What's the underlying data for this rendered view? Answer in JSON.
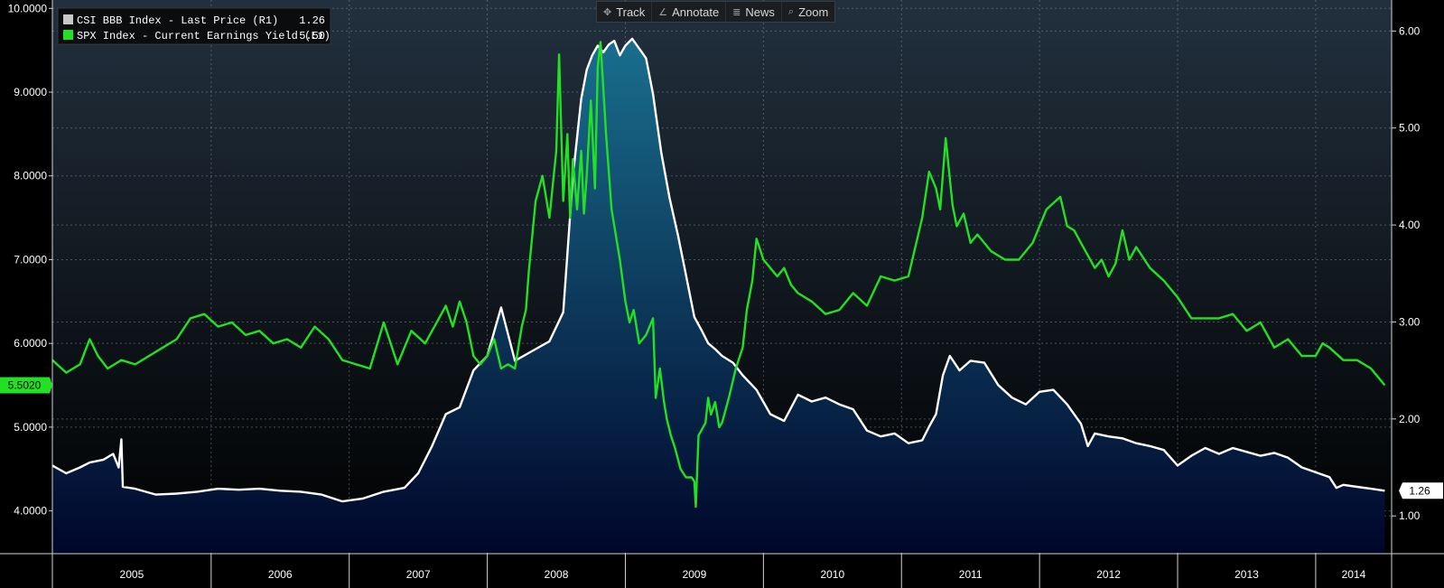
{
  "toolbar": {
    "track": {
      "label": "Track",
      "icon": "crosshair-icon"
    },
    "annotate": {
      "label": "Annotate",
      "icon": "pencil-icon"
    },
    "news": {
      "label": "News",
      "icon": "list-icon"
    },
    "zoom": {
      "label": "Zoom",
      "icon": "magnifier-icon"
    }
  },
  "legend": [
    {
      "name": "CSI BBB Index - Last Price (R1)",
      "value": "1.26",
      "color": "#c8c8c8"
    },
    {
      "name": "SPX Index - Current Earnings Yield (L1)",
      "value": "5.50",
      "color": "#22e022"
    }
  ],
  "last_value_tags": {
    "left": "5.5020",
    "right": "1.26"
  },
  "chart_data": {
    "type": "line",
    "background_top": "#22303e",
    "background_bottom": "#000000",
    "grid": true,
    "legend_position": "top-left",
    "x_ticks": [
      "2005",
      "2006",
      "2007",
      "2008",
      "2009",
      "2010",
      "2011",
      "2012",
      "2013",
      "2014"
    ],
    "x_range": [
      2004.85,
      2014.55
    ],
    "left_axis": {
      "ticks": [
        "4.0000",
        "5.0000",
        "6.0000",
        "7.0000",
        "8.0000",
        "9.0000",
        "10.0000"
      ],
      "range": [
        3.5,
        10.1
      ]
    },
    "right_axis": {
      "ticks": [
        "1.00",
        "2.00",
        "3.00",
        "4.00",
        "5.00",
        "6.00"
      ],
      "range": [
        0.62,
        6.32
      ]
    },
    "series": [
      {
        "name": "CSI BBB Index - Last Price (R1)",
        "axis": "right",
        "color": "#ffffff",
        "fill_top": "#1a7090",
        "fill_bottom": "#00062a",
        "x": [
          2004.85,
          2004.95,
          2005.05,
          2005.12,
          2005.22,
          2005.29,
          2005.33,
          2005.35,
          2005.36,
          2005.45,
          2005.6,
          2005.75,
          2005.9,
          2006.05,
          2006.2,
          2006.35,
          2006.5,
          2006.65,
          2006.8,
          2006.95,
          2007.1,
          2007.25,
          2007.4,
          2007.5,
          2007.6,
          2007.7,
          2007.8,
          2007.9,
          2008.0,
          2008.05,
          2008.1,
          2008.2,
          2008.35,
          2008.45,
          2008.55,
          2008.62,
          2008.68,
          2008.72,
          2008.76,
          2008.8,
          2008.84,
          2008.88,
          2008.92,
          2008.96,
          2009.0,
          2009.05,
          2009.1,
          2009.15,
          2009.2,
          2009.26,
          2009.32,
          2009.38,
          2009.43,
          2009.5,
          2009.55,
          2009.6,
          2009.65,
          2009.7,
          2009.78,
          2009.85,
          2009.95,
          2010.05,
          2010.15,
          2010.25,
          2010.35,
          2010.45,
          2010.55,
          2010.65,
          2010.75,
          2010.85,
          2010.95,
          2011.05,
          2011.15,
          2011.2,
          2011.25,
          2011.3,
          2011.35,
          2011.42,
          2011.5,
          2011.6,
          2011.7,
          2011.8,
          2011.9,
          2012.0,
          2012.1,
          2012.2,
          2012.3,
          2012.35,
          2012.4,
          2012.5,
          2012.6,
          2012.7,
          2012.8,
          2012.9,
          2013.0,
          2013.1,
          2013.2,
          2013.3,
          2013.4,
          2013.5,
          2013.6,
          2013.7,
          2013.8,
          2013.9,
          2014.0,
          2014.1,
          2014.15,
          2014.2,
          2014.3,
          2014.4,
          2014.5
        ],
        "values": [
          1.52,
          1.44,
          1.5,
          1.55,
          1.58,
          1.64,
          1.5,
          1.79,
          1.3,
          1.28,
          1.22,
          1.23,
          1.25,
          1.28,
          1.27,
          1.28,
          1.26,
          1.25,
          1.22,
          1.15,
          1.18,
          1.25,
          1.29,
          1.44,
          1.72,
          2.05,
          2.12,
          2.5,
          2.65,
          2.9,
          3.15,
          2.6,
          2.72,
          2.8,
          3.1,
          4.5,
          5.3,
          5.6,
          5.75,
          5.85,
          5.78,
          5.86,
          5.9,
          5.75,
          5.85,
          5.92,
          5.82,
          5.72,
          5.35,
          4.75,
          4.28,
          3.9,
          3.55,
          3.05,
          2.92,
          2.78,
          2.72,
          2.65,
          2.58,
          2.45,
          2.3,
          2.05,
          1.98,
          2.25,
          2.18,
          2.22,
          2.15,
          2.1,
          1.88,
          1.82,
          1.85,
          1.75,
          1.78,
          1.92,
          2.05,
          2.45,
          2.65,
          2.5,
          2.6,
          2.58,
          2.35,
          2.22,
          2.15,
          2.28,
          2.3,
          2.15,
          1.95,
          1.72,
          1.85,
          1.82,
          1.8,
          1.75,
          1.72,
          1.68,
          1.52,
          1.62,
          1.7,
          1.64,
          1.7,
          1.66,
          1.62,
          1.65,
          1.6,
          1.5,
          1.45,
          1.4,
          1.29,
          1.32,
          1.3,
          1.28,
          1.26
        ]
      },
      {
        "name": "SPX Index - Current Earnings Yield (L1)",
        "axis": "left",
        "color": "#22e022",
        "x": [
          2004.85,
          2004.95,
          2005.05,
          2005.12,
          2005.18,
          2005.25,
          2005.35,
          2005.45,
          2005.55,
          2005.65,
          2005.75,
          2005.85,
          2005.95,
          2006.05,
          2006.15,
          2006.25,
          2006.35,
          2006.45,
          2006.55,
          2006.65,
          2006.75,
          2006.85,
          2006.95,
          2007.05,
          2007.15,
          2007.25,
          2007.3,
          2007.35,
          2007.45,
          2007.55,
          2007.65,
          2007.7,
          2007.75,
          2007.8,
          2007.85,
          2007.9,
          2007.95,
          2008.0,
          2008.05,
          2008.1,
          2008.15,
          2008.2,
          2008.25,
          2008.28,
          2008.3,
          2008.35,
          2008.4,
          2008.45,
          2008.5,
          2008.52,
          2008.55,
          2008.58,
          2008.6,
          2008.62,
          2008.65,
          2008.68,
          2008.7,
          2008.72,
          2008.75,
          2008.78,
          2008.8,
          2008.82,
          2008.86,
          2008.9,
          2008.93,
          2008.96,
          2009.0,
          2009.03,
          2009.06,
          2009.1,
          2009.15,
          2009.2,
          2009.22,
          2009.25,
          2009.28,
          2009.3,
          2009.33,
          2009.36,
          2009.4,
          2009.44,
          2009.48,
          2009.5,
          2009.51,
          2009.53,
          2009.58,
          2009.6,
          2009.62,
          2009.65,
          2009.68,
          2009.7,
          2009.75,
          2009.8,
          2009.85,
          2009.88,
          2009.92,
          2009.95,
          2010.0,
          2010.05,
          2010.1,
          2010.15,
          2010.2,
          2010.25,
          2010.35,
          2010.45,
          2010.55,
          2010.65,
          2010.75,
          2010.85,
          2010.95,
          2011.05,
          2011.15,
          2011.2,
          2011.25,
          2011.28,
          2011.32,
          2011.37,
          2011.4,
          2011.45,
          2011.5,
          2011.55,
          2011.65,
          2011.75,
          2011.85,
          2011.95,
          2012.05,
          2012.15,
          2012.2,
          2012.25,
          2012.3,
          2012.4,
          2012.45,
          2012.5,
          2012.55,
          2012.6,
          2012.65,
          2012.7,
          2012.8,
          2012.9,
          2013.0,
          2013.1,
          2013.2,
          2013.3,
          2013.4,
          2013.5,
          2013.6,
          2013.7,
          2013.8,
          2013.9,
          2014.0,
          2014.05,
          2014.1,
          2014.2,
          2014.3,
          2014.4,
          2014.5
        ],
        "values": [
          5.8,
          5.65,
          5.75,
          6.05,
          5.85,
          5.7,
          5.8,
          5.75,
          5.85,
          5.95,
          6.05,
          6.3,
          6.35,
          6.2,
          6.25,
          6.1,
          6.15,
          6.0,
          6.05,
          5.95,
          6.2,
          6.05,
          5.8,
          5.75,
          5.7,
          6.25,
          6.0,
          5.75,
          6.15,
          6.0,
          6.3,
          6.45,
          6.2,
          6.5,
          6.25,
          5.85,
          5.75,
          5.85,
          6.05,
          5.7,
          5.75,
          5.7,
          6.2,
          6.4,
          6.85,
          7.7,
          8.0,
          7.5,
          8.3,
          9.45,
          7.7,
          8.5,
          7.5,
          8.2,
          7.6,
          8.3,
          7.55,
          8.0,
          8.9,
          7.85,
          9.3,
          9.6,
          8.5,
          7.6,
          7.3,
          7.0,
          6.5,
          6.25,
          6.4,
          6.0,
          6.1,
          6.3,
          5.35,
          5.7,
          5.3,
          5.1,
          4.9,
          4.75,
          4.5,
          4.4,
          4.4,
          4.35,
          4.05,
          4.9,
          5.05,
          5.35,
          5.15,
          5.3,
          5.0,
          5.05,
          5.35,
          5.7,
          5.95,
          6.4,
          6.75,
          7.25,
          7.0,
          6.9,
          6.8,
          6.9,
          6.7,
          6.6,
          6.5,
          6.35,
          6.4,
          6.6,
          6.45,
          6.8,
          6.75,
          6.8,
          7.5,
          8.05,
          7.85,
          7.6,
          8.45,
          7.65,
          7.4,
          7.55,
          7.2,
          7.3,
          7.1,
          7.0,
          7.0,
          7.2,
          7.6,
          7.75,
          7.4,
          7.35,
          7.2,
          6.9,
          7.0,
          6.8,
          6.95,
          7.35,
          7.0,
          7.15,
          6.9,
          6.75,
          6.55,
          6.3,
          6.3,
          6.3,
          6.35,
          6.15,
          6.25,
          5.95,
          6.05,
          5.85,
          5.85,
          6.0,
          5.95,
          5.8,
          5.8,
          5.7,
          5.5
        ]
      }
    ]
  }
}
